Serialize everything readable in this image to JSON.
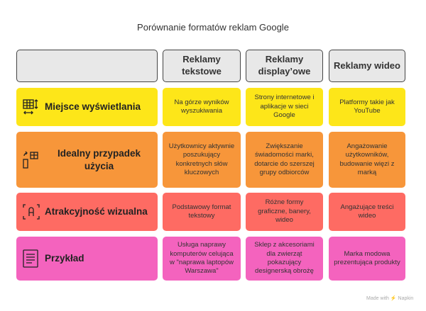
{
  "title": "Porównanie formatów reklam Google",
  "columns": [
    "",
    "Reklamy tekstowe",
    "Reklamy display’owe",
    "Reklamy wideo"
  ],
  "colors": {
    "header": "#e8e8e8",
    "row1": "#fde619",
    "row2": "#f7963a",
    "row3": "#fe6b63",
    "row4": "#f463be"
  },
  "rows": [
    {
      "label": "Miejsce wyświetlania",
      "icon": "table-resize-icon",
      "cells": [
        "Na górze wyników wyszukiwania",
        "Strony internetowe i aplikacje w sieci Google",
        "Platformy takie jak YouTube"
      ]
    },
    {
      "label": "Idealny przypadek użycia",
      "icon": "device-switch-icon",
      "cells": [
        "Użytkownicy aktywnie poszukujący konkretnych słów kluczowych",
        "Zwiększanie świadomości marki, dotarcie do szerszej grupy odbiorców",
        "Angażowanie użytkowników, budowanie więzi z marką"
      ]
    },
    {
      "label": "Atrakcyjność wizualna",
      "icon": "text-frame-icon",
      "cells": [
        "Podstawowy format tekstowy",
        "Różne formy graficzne, banery, wideo",
        "Angażujące treści wideo"
      ]
    },
    {
      "label": "Przykład",
      "icon": "document-icon",
      "cells": [
        "Usługa naprawy komputerów celująca w \"naprawa laptopów Warszawa\"",
        "Sklep z akcesoriami dla zwierząt pokazujący designerską obrożę",
        "Marka modowa prezentująca produkty"
      ]
    }
  ],
  "footer": "Made with ⚡ Napkin"
}
